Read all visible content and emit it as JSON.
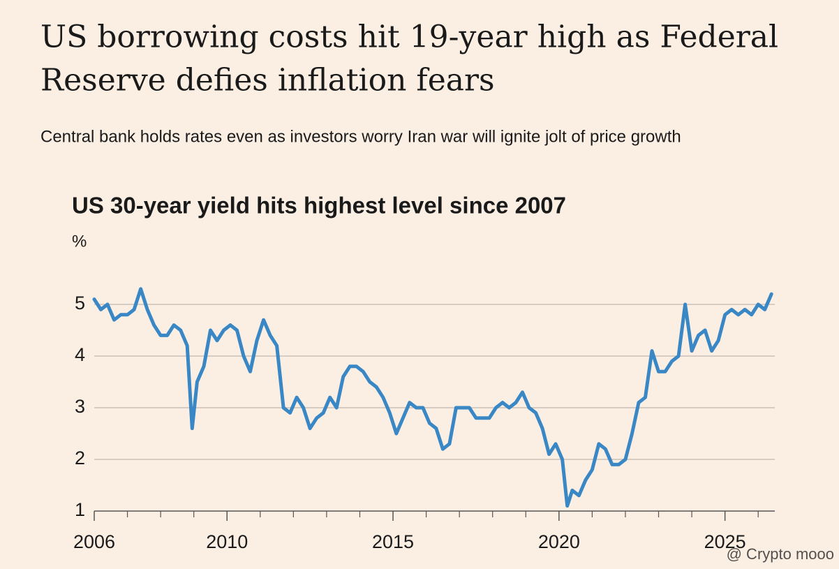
{
  "headline": [
    "US borrowing costs hit 19-year high as Federal",
    "Reserve defies inflation fears"
  ],
  "subheadline": "Central bank holds rates even as investors worry Iran war will ignite jolt of price growth",
  "watermark": "@ Crypto mooo",
  "chart_data": {
    "type": "line",
    "title": "US 30-year yield hits highest level since 2007",
    "y_label": "%",
    "x": [
      2006.0,
      2006.2,
      2006.4,
      2006.6,
      2006.8,
      2007.0,
      2007.2,
      2007.4,
      2007.6,
      2007.8,
      2008.0,
      2008.2,
      2008.4,
      2008.6,
      2008.8,
      2008.95,
      2009.1,
      2009.3,
      2009.5,
      2009.7,
      2009.9,
      2010.1,
      2010.3,
      2010.5,
      2010.7,
      2010.9,
      2011.1,
      2011.3,
      2011.5,
      2011.7,
      2011.9,
      2012.1,
      2012.3,
      2012.5,
      2012.7,
      2012.9,
      2013.1,
      2013.3,
      2013.5,
      2013.7,
      2013.9,
      2014.1,
      2014.3,
      2014.5,
      2014.7,
      2014.9,
      2015.1,
      2015.3,
      2015.5,
      2015.7,
      2015.9,
      2016.1,
      2016.3,
      2016.5,
      2016.7,
      2016.9,
      2017.1,
      2017.3,
      2017.5,
      2017.7,
      2017.9,
      2018.1,
      2018.3,
      2018.5,
      2018.7,
      2018.9,
      2019.1,
      2019.3,
      2019.5,
      2019.7,
      2019.9,
      2020.1,
      2020.25,
      2020.4,
      2020.6,
      2020.8,
      2021.0,
      2021.2,
      2021.4,
      2021.6,
      2021.8,
      2022.0,
      2022.2,
      2022.4,
      2022.6,
      2022.8,
      2023.0,
      2023.2,
      2023.4,
      2023.6,
      2023.8,
      2024.0,
      2024.2,
      2024.4,
      2024.6,
      2024.8,
      2025.0,
      2025.2,
      2025.4,
      2025.6,
      2025.8,
      2026.0,
      2026.2,
      2026.4
    ],
    "series": [
      {
        "name": "US 30-year yield",
        "color": "#3a87c5",
        "values": [
          5.1,
          4.9,
          5.0,
          4.7,
          4.8,
          4.8,
          4.9,
          5.3,
          4.9,
          4.6,
          4.4,
          4.4,
          4.6,
          4.5,
          4.2,
          2.6,
          3.5,
          3.8,
          4.5,
          4.3,
          4.5,
          4.6,
          4.5,
          4.0,
          3.7,
          4.3,
          4.7,
          4.4,
          4.2,
          3.0,
          2.9,
          3.2,
          3.0,
          2.6,
          2.8,
          2.9,
          3.2,
          3.0,
          3.6,
          3.8,
          3.8,
          3.7,
          3.5,
          3.4,
          3.2,
          2.9,
          2.5,
          2.8,
          3.1,
          3.0,
          3.0,
          2.7,
          2.6,
          2.2,
          2.3,
          3.0,
          3.0,
          3.0,
          2.8,
          2.8,
          2.8,
          3.0,
          3.1,
          3.0,
          3.1,
          3.3,
          3.0,
          2.9,
          2.6,
          2.1,
          2.3,
          2.0,
          1.1,
          1.4,
          1.3,
          1.6,
          1.8,
          2.3,
          2.2,
          1.9,
          1.9,
          2.0,
          2.5,
          3.1,
          3.2,
          4.1,
          3.7,
          3.7,
          3.9,
          4.0,
          5.0,
          4.1,
          4.4,
          4.5,
          4.1,
          4.3,
          4.8,
          4.9,
          4.8,
          4.9,
          4.8,
          5.0,
          4.9,
          5.2
        ]
      }
    ],
    "xlim": [
      2006,
      2026.5
    ],
    "xticks": [
      2006,
      2010,
      2015,
      2020,
      2025
    ],
    "xminorticks": [
      2007,
      2008,
      2009,
      2011,
      2012,
      2013,
      2014,
      2016,
      2017,
      2018,
      2019,
      2021,
      2022,
      2023,
      2024,
      2026
    ],
    "ylim": [
      1,
      5.5
    ],
    "yticks": [
      1,
      2,
      3,
      4,
      5
    ],
    "grid": true
  }
}
